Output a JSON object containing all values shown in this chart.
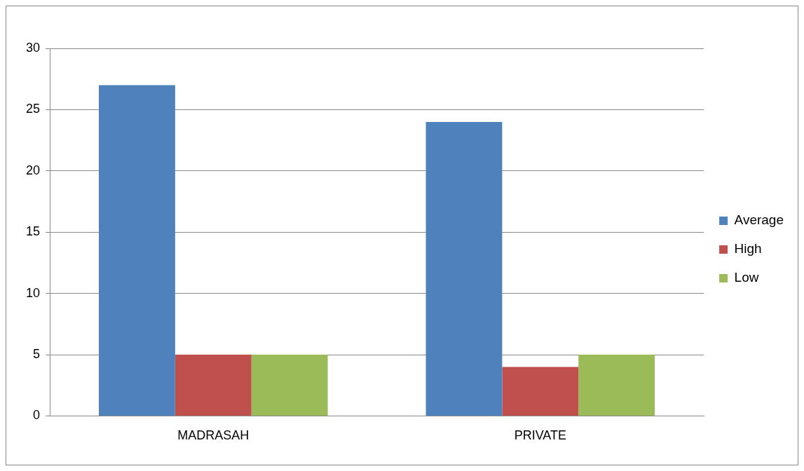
{
  "chart_data": {
    "type": "bar",
    "categories": [
      "MADRASAH",
      "PRIVATE"
    ],
    "series": [
      {
        "name": "Average",
        "color": "#4f81bd",
        "values": [
          27,
          24
        ]
      },
      {
        "name": "High",
        "color": "#c0504d",
        "values": [
          5,
          4
        ]
      },
      {
        "name": "Low",
        "color": "#9bbb59",
        "values": [
          5,
          5
        ]
      }
    ],
    "ylim": [
      0,
      30
    ],
    "yticks": [
      0,
      5,
      10,
      15,
      20,
      25,
      30
    ],
    "grid": "y",
    "legend": "right"
  }
}
